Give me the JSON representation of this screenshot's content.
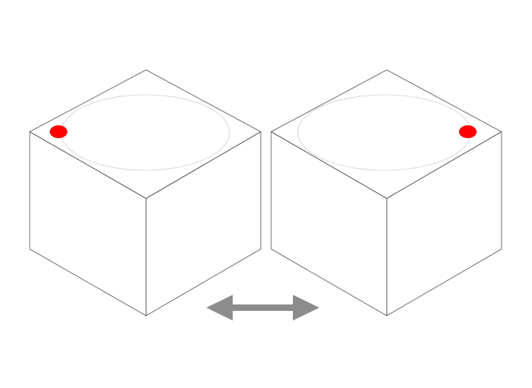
{
  "diagram": {
    "background_color": "#ffffff",
    "edge_color": "#555555",
    "ring_color": "#d4d4d4",
    "marker_color": "#ff0000",
    "arrow_color": "#8c8c8c",
    "cubes": [
      {
        "id": "left-cube",
        "marker_corner": "left"
      },
      {
        "id": "right-cube",
        "marker_corner": "right"
      }
    ],
    "arrow": {
      "direction": "bidirectional",
      "icon": "double-headed-arrow-icon"
    }
  }
}
